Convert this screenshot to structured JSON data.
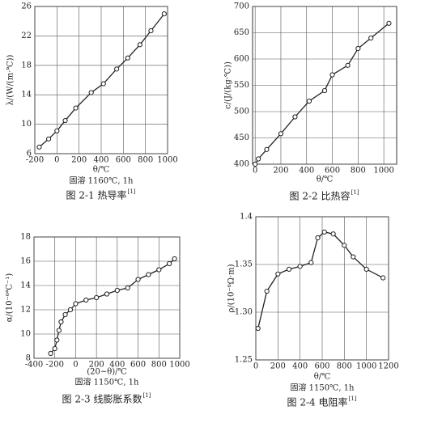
{
  "chart_data": [
    {
      "type": "line",
      "y_label": "λ/(W/(m·℃))",
      "x_label": "θ/℃",
      "note": "固溶 1160℃, 1h",
      "caption": "图 2-1  热导率",
      "caption_ref": "[1]",
      "x": [
        -160,
        -75,
        0,
        75,
        170,
        310,
        420,
        540,
        640,
        750,
        850,
        970
      ],
      "values": [
        6.9,
        8.0,
        9.1,
        10.5,
        12.2,
        14.3,
        15.5,
        17.5,
        19.0,
        20.8,
        22.7,
        25.0
      ],
      "color": "#222222",
      "xlim": [
        -200,
        1000
      ],
      "xticks": [
        -200,
        0,
        200,
        400,
        600,
        800,
        1000
      ],
      "ylim": [
        6,
        26
      ],
      "yticks": [
        6,
        10,
        14,
        18,
        22,
        26
      ],
      "grid": true
    },
    {
      "type": "line",
      "y_label": "c/(J/(kg·℃))",
      "x_label": "θ/℃",
      "caption": "图 2-2  比热容",
      "caption_ref": "[1]",
      "x": [
        0,
        25,
        90,
        200,
        310,
        420,
        540,
        600,
        720,
        800,
        900,
        1040
      ],
      "values": [
        400,
        410,
        428,
        458,
        490,
        520,
        540,
        570,
        588,
        620,
        640,
        668
      ],
      "color": "#222222",
      "xlim": [
        -20,
        1100
      ],
      "xticks": [
        0,
        200,
        400,
        600,
        800,
        1000
      ],
      "ylim": [
        400,
        700
      ],
      "yticks": [
        400,
        450,
        500,
        550,
        600,
        650,
        700
      ],
      "grid": true
    },
    {
      "type": "line",
      "y_label": "α/(10⁻⁶℃⁻¹)",
      "x_label": "(20~θ)/℃",
      "note": "固溶 1150℃, 1h",
      "caption": "图 2-3  线膨胀系数",
      "caption_ref": "[1]",
      "x": [
        -240,
        -200,
        -180,
        -160,
        -140,
        -100,
        -50,
        0,
        100,
        200,
        300,
        400,
        500,
        600,
        700,
        800,
        900,
        950
      ],
      "values": [
        8.4,
        8.8,
        9.5,
        10.3,
        11.0,
        11.6,
        12.0,
        12.5,
        12.8,
        13.0,
        13.3,
        13.6,
        13.8,
        14.5,
        14.9,
        15.3,
        15.8,
        16.2
      ],
      "color": "#222222",
      "xlim": [
        -400,
        1000
      ],
      "xticks": [
        -400,
        -200,
        0,
        200,
        400,
        600,
        800,
        1000
      ],
      "ylim": [
        8,
        18
      ],
      "yticks": [
        8,
        10,
        12,
        14,
        16,
        18
      ],
      "grid": true
    },
    {
      "type": "line",
      "y_label": "ρ/(10⁻⁶Ω·m)",
      "x_label": "θ/℃",
      "note": "固溶 1150℃, 1h",
      "caption": "图 2-4  电阻率",
      "caption_ref": "[1]",
      "x": [
        20,
        100,
        200,
        300,
        400,
        500,
        560,
        620,
        700,
        800,
        880,
        1000,
        1150
      ],
      "values": [
        1.283,
        1.322,
        1.34,
        1.345,
        1.348,
        1.352,
        1.378,
        1.384,
        1.382,
        1.37,
        1.358,
        1.345,
        1.336
      ],
      "color": "#222222",
      "xlim": [
        0,
        1200
      ],
      "xticks": [
        0,
        200,
        400,
        600,
        800,
        1000,
        1200
      ],
      "ylim": [
        1.25,
        1.4
      ],
      "yticks": [
        1.25,
        {
          "value": 1.3,
          "label": "1.30"
        },
        1.35,
        1.4
      ],
      "grid": true
    }
  ]
}
